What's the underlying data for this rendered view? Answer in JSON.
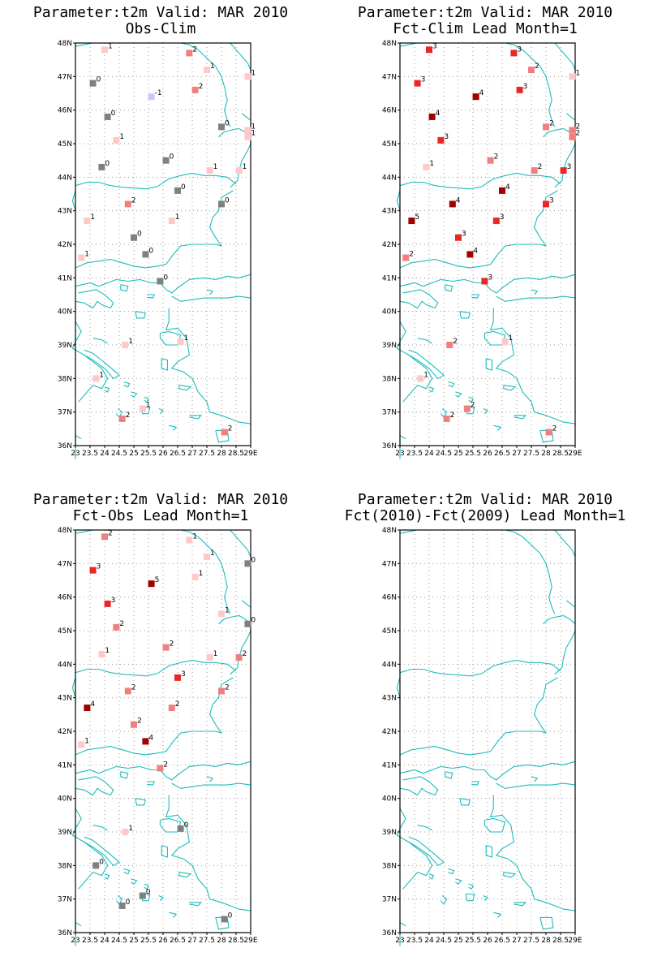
{
  "colors": {
    "coast": "#1cbcbc",
    "grid": "#9a9a9a",
    "frame": "#000000",
    "v_neg1": "#c8c8ff",
    "v0": "#808080",
    "v1": "#ffc8c8",
    "v2": "#f08080",
    "v3": "#e82828",
    "v4": "#a00000",
    "v5": "#a00000"
  },
  "axes": {
    "lat_ticks": [
      "36N",
      "37N",
      "38N",
      "39N",
      "40N",
      "41N",
      "42N",
      "43N",
      "44N",
      "45N",
      "46N",
      "47N",
      "48N"
    ],
    "lon_ticks": [
      "23",
      "23.5",
      "24",
      "24.5",
      "25",
      "25.5",
      "26",
      "26.5",
      "27",
      "27.5",
      "28",
      "28.5",
      "29E"
    ],
    "lon_range": [
      23,
      29
    ],
    "lat_range": [
      36,
      48
    ]
  },
  "chart_data": [
    {
      "type": "scatter",
      "title": "Parameter:t2m Valid: MAR 2010",
      "subtitle": "Obs-Clim",
      "points": [
        {
          "lon": 24.0,
          "lat": 47.8,
          "v": 1
        },
        {
          "lon": 26.9,
          "lat": 47.7,
          "v": 2
        },
        {
          "lon": 27.5,
          "lat": 47.2,
          "v": 1
        },
        {
          "lon": 28.9,
          "lat": 47.0,
          "v": 1
        },
        {
          "lon": 23.6,
          "lat": 46.8,
          "v": 0
        },
        {
          "lon": 25.6,
          "lat": 46.4,
          "v": -1
        },
        {
          "lon": 27.1,
          "lat": 46.6,
          "v": 2
        },
        {
          "lon": 24.1,
          "lat": 45.8,
          "v": 0
        },
        {
          "lon": 28.0,
          "lat": 45.5,
          "v": 0
        },
        {
          "lon": 24.4,
          "lat": 45.1,
          "v": 1
        },
        {
          "lon": 28.9,
          "lat": 45.4,
          "v": 1
        },
        {
          "lon": 28.9,
          "lat": 45.2,
          "v": 1
        },
        {
          "lon": 23.9,
          "lat": 44.3,
          "v": 0
        },
        {
          "lon": 26.1,
          "lat": 44.5,
          "v": 0
        },
        {
          "lon": 27.6,
          "lat": 44.2,
          "v": 1
        },
        {
          "lon": 28.6,
          "lat": 44.2,
          "v": 1
        },
        {
          "lon": 26.5,
          "lat": 43.6,
          "v": 0
        },
        {
          "lon": 24.8,
          "lat": 43.2,
          "v": 2
        },
        {
          "lon": 28.0,
          "lat": 43.2,
          "v": 0
        },
        {
          "lon": 23.4,
          "lat": 42.7,
          "v": 1
        },
        {
          "lon": 26.3,
          "lat": 42.7,
          "v": 1
        },
        {
          "lon": 25.0,
          "lat": 42.2,
          "v": 0
        },
        {
          "lon": 25.4,
          "lat": 41.7,
          "v": 0
        },
        {
          "lon": 23.2,
          "lat": 41.6,
          "v": 1
        },
        {
          "lon": 25.9,
          "lat": 40.9,
          "v": 0
        },
        {
          "lon": 24.7,
          "lat": 39.0,
          "v": 1
        },
        {
          "lon": 26.6,
          "lat": 39.1,
          "v": 1
        },
        {
          "lon": 23.7,
          "lat": 38.0,
          "v": 1
        },
        {
          "lon": 25.3,
          "lat": 37.1,
          "v": 1
        },
        {
          "lon": 24.6,
          "lat": 36.8,
          "v": 2
        },
        {
          "lon": 28.1,
          "lat": 36.4,
          "v": 2
        }
      ]
    },
    {
      "type": "scatter",
      "title": "Parameter:t2m Valid: MAR 2010",
      "subtitle": "Fct-Clim Lead Month=1",
      "points": [
        {
          "lon": 24.0,
          "lat": 47.8,
          "v": 3
        },
        {
          "lon": 26.9,
          "lat": 47.7,
          "v": 3
        },
        {
          "lon": 27.5,
          "lat": 47.2,
          "v": 2
        },
        {
          "lon": 28.9,
          "lat": 47.0,
          "v": 1
        },
        {
          "lon": 23.6,
          "lat": 46.8,
          "v": 3
        },
        {
          "lon": 25.6,
          "lat": 46.4,
          "v": 4
        },
        {
          "lon": 27.1,
          "lat": 46.6,
          "v": 3
        },
        {
          "lon": 24.1,
          "lat": 45.8,
          "v": 4
        },
        {
          "lon": 28.0,
          "lat": 45.5,
          "v": 2
        },
        {
          "lon": 24.4,
          "lat": 45.1,
          "v": 3
        },
        {
          "lon": 28.9,
          "lat": 45.4,
          "v": 2
        },
        {
          "lon": 28.9,
          "lat": 45.2,
          "v": 2
        },
        {
          "lon": 23.9,
          "lat": 44.3,
          "v": 1
        },
        {
          "lon": 26.1,
          "lat": 44.5,
          "v": 2
        },
        {
          "lon": 27.6,
          "lat": 44.2,
          "v": 2
        },
        {
          "lon": 28.6,
          "lat": 44.2,
          "v": 3
        },
        {
          "lon": 26.5,
          "lat": 43.6,
          "v": 4
        },
        {
          "lon": 24.8,
          "lat": 43.2,
          "v": 4
        },
        {
          "lon": 28.0,
          "lat": 43.2,
          "v": 3
        },
        {
          "lon": 23.4,
          "lat": 42.7,
          "v": 5
        },
        {
          "lon": 26.3,
          "lat": 42.7,
          "v": 3
        },
        {
          "lon": 25.0,
          "lat": 42.2,
          "v": 3
        },
        {
          "lon": 25.4,
          "lat": 41.7,
          "v": 4
        },
        {
          "lon": 23.2,
          "lat": 41.6,
          "v": 2
        },
        {
          "lon": 25.9,
          "lat": 40.9,
          "v": 3
        },
        {
          "lon": 24.7,
          "lat": 39.0,
          "v": 2
        },
        {
          "lon": 26.6,
          "lat": 39.1,
          "v": 1
        },
        {
          "lon": 23.7,
          "lat": 38.0,
          "v": 1
        },
        {
          "lon": 25.3,
          "lat": 37.1,
          "v": 2
        },
        {
          "lon": 24.6,
          "lat": 36.8,
          "v": 2
        },
        {
          "lon": 28.1,
          "lat": 36.4,
          "v": 2
        }
      ]
    },
    {
      "type": "scatter",
      "title": "Parameter:t2m Valid: MAR 2010",
      "subtitle": "Fct-Obs Lead Month=1",
      "points": [
        {
          "lon": 24.0,
          "lat": 47.8,
          "v": 2
        },
        {
          "lon": 26.9,
          "lat": 47.7,
          "v": 1
        },
        {
          "lon": 27.5,
          "lat": 47.2,
          "v": 1
        },
        {
          "lon": 28.9,
          "lat": 47.0,
          "v": 0
        },
        {
          "lon": 23.6,
          "lat": 46.8,
          "v": 3
        },
        {
          "lon": 25.6,
          "lat": 46.4,
          "v": 5
        },
        {
          "lon": 27.1,
          "lat": 46.6,
          "v": 1
        },
        {
          "lon": 24.1,
          "lat": 45.8,
          "v": 3
        },
        {
          "lon": 28.0,
          "lat": 45.5,
          "v": 1
        },
        {
          "lon": 24.4,
          "lat": 45.1,
          "v": 2
        },
        {
          "lon": 28.9,
          "lat": 45.2,
          "v": 0
        },
        {
          "lon": 23.9,
          "lat": 44.3,
          "v": 1
        },
        {
          "lon": 26.1,
          "lat": 44.5,
          "v": 2
        },
        {
          "lon": 27.6,
          "lat": 44.2,
          "v": 1
        },
        {
          "lon": 28.6,
          "lat": 44.2,
          "v": 2
        },
        {
          "lon": 26.5,
          "lat": 43.6,
          "v": 3
        },
        {
          "lon": 24.8,
          "lat": 43.2,
          "v": 2
        },
        {
          "lon": 28.0,
          "lat": 43.2,
          "v": 2
        },
        {
          "lon": 23.4,
          "lat": 42.7,
          "v": 4
        },
        {
          "lon": 26.3,
          "lat": 42.7,
          "v": 2
        },
        {
          "lon": 25.0,
          "lat": 42.2,
          "v": 2
        },
        {
          "lon": 25.4,
          "lat": 41.7,
          "v": 4
        },
        {
          "lon": 23.2,
          "lat": 41.6,
          "v": 1
        },
        {
          "lon": 25.9,
          "lat": 40.9,
          "v": 2
        },
        {
          "lon": 24.7,
          "lat": 39.0,
          "v": 1
        },
        {
          "lon": 26.6,
          "lat": 39.1,
          "v": 0
        },
        {
          "lon": 23.7,
          "lat": 38.0,
          "v": 0
        },
        {
          "lon": 25.3,
          "lat": 37.1,
          "v": 0
        },
        {
          "lon": 24.6,
          "lat": 36.8,
          "v": 0
        },
        {
          "lon": 28.1,
          "lat": 36.4,
          "v": 0
        }
      ]
    },
    {
      "type": "scatter",
      "title": "Parameter:t2m Valid: MAR 2010",
      "subtitle": "Fct(2010)-Fct(2009) Lead Month=1",
      "points": []
    }
  ]
}
